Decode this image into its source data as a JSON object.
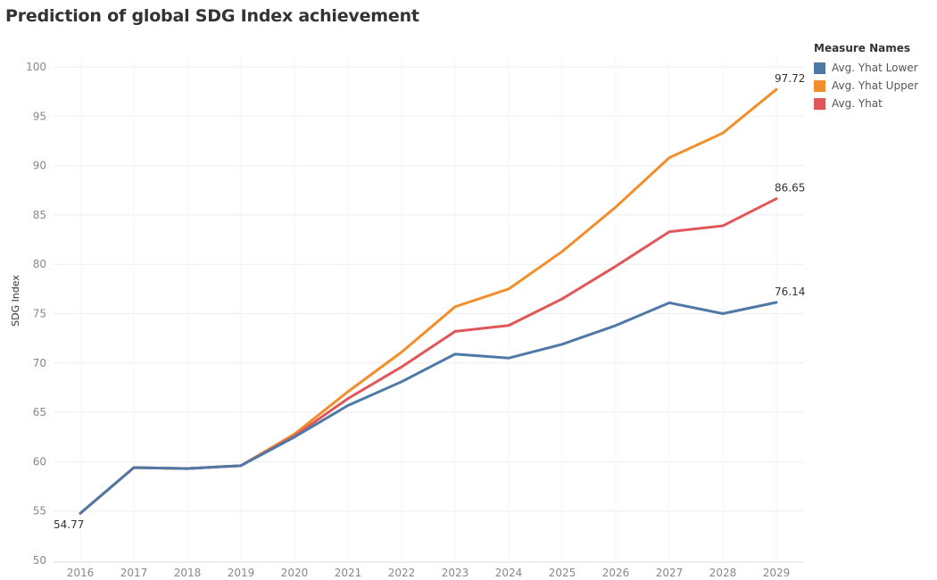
{
  "chart_data": {
    "type": "line",
    "title": "Prediction of global SDG Index achievement",
    "ylabel": "SDG Index",
    "xlabel": "",
    "ylim": [
      50,
      100
    ],
    "yticks": [
      50,
      55,
      60,
      65,
      70,
      75,
      80,
      85,
      90,
      95,
      100
    ],
    "x": [
      "2016",
      "2017",
      "2018",
      "2019",
      "2020",
      "2021",
      "2022",
      "2023",
      "2024",
      "2025",
      "2026",
      "2027",
      "2028",
      "2029"
    ],
    "grid": true,
    "legend": {
      "title": "Measure Names",
      "placement": "top-right"
    },
    "series": [
      {
        "name": "Avg. Yhat Lower",
        "color": "#4e79a7",
        "values": [
          54.77,
          59.4,
          59.3,
          59.6,
          62.5,
          65.7,
          68.1,
          70.9,
          70.5,
          71.9,
          73.8,
          76.1,
          75.0,
          76.14
        ],
        "end_label": "76.14"
      },
      {
        "name": "Avg. Yhat Upper",
        "color": "#f28e2b",
        "values": [
          54.77,
          59.4,
          59.3,
          59.6,
          62.8,
          67.1,
          71.1,
          75.7,
          77.5,
          81.3,
          85.8,
          90.8,
          93.3,
          97.72
        ],
        "end_label": "97.72"
      },
      {
        "name": "Avg. Yhat",
        "color": "#e15759",
        "values": [
          54.77,
          59.4,
          59.3,
          59.6,
          62.6,
          66.4,
          69.6,
          73.2,
          73.8,
          76.5,
          79.8,
          83.3,
          83.9,
          86.65
        ],
        "end_label": "86.65"
      }
    ],
    "start_label": "54.77"
  }
}
